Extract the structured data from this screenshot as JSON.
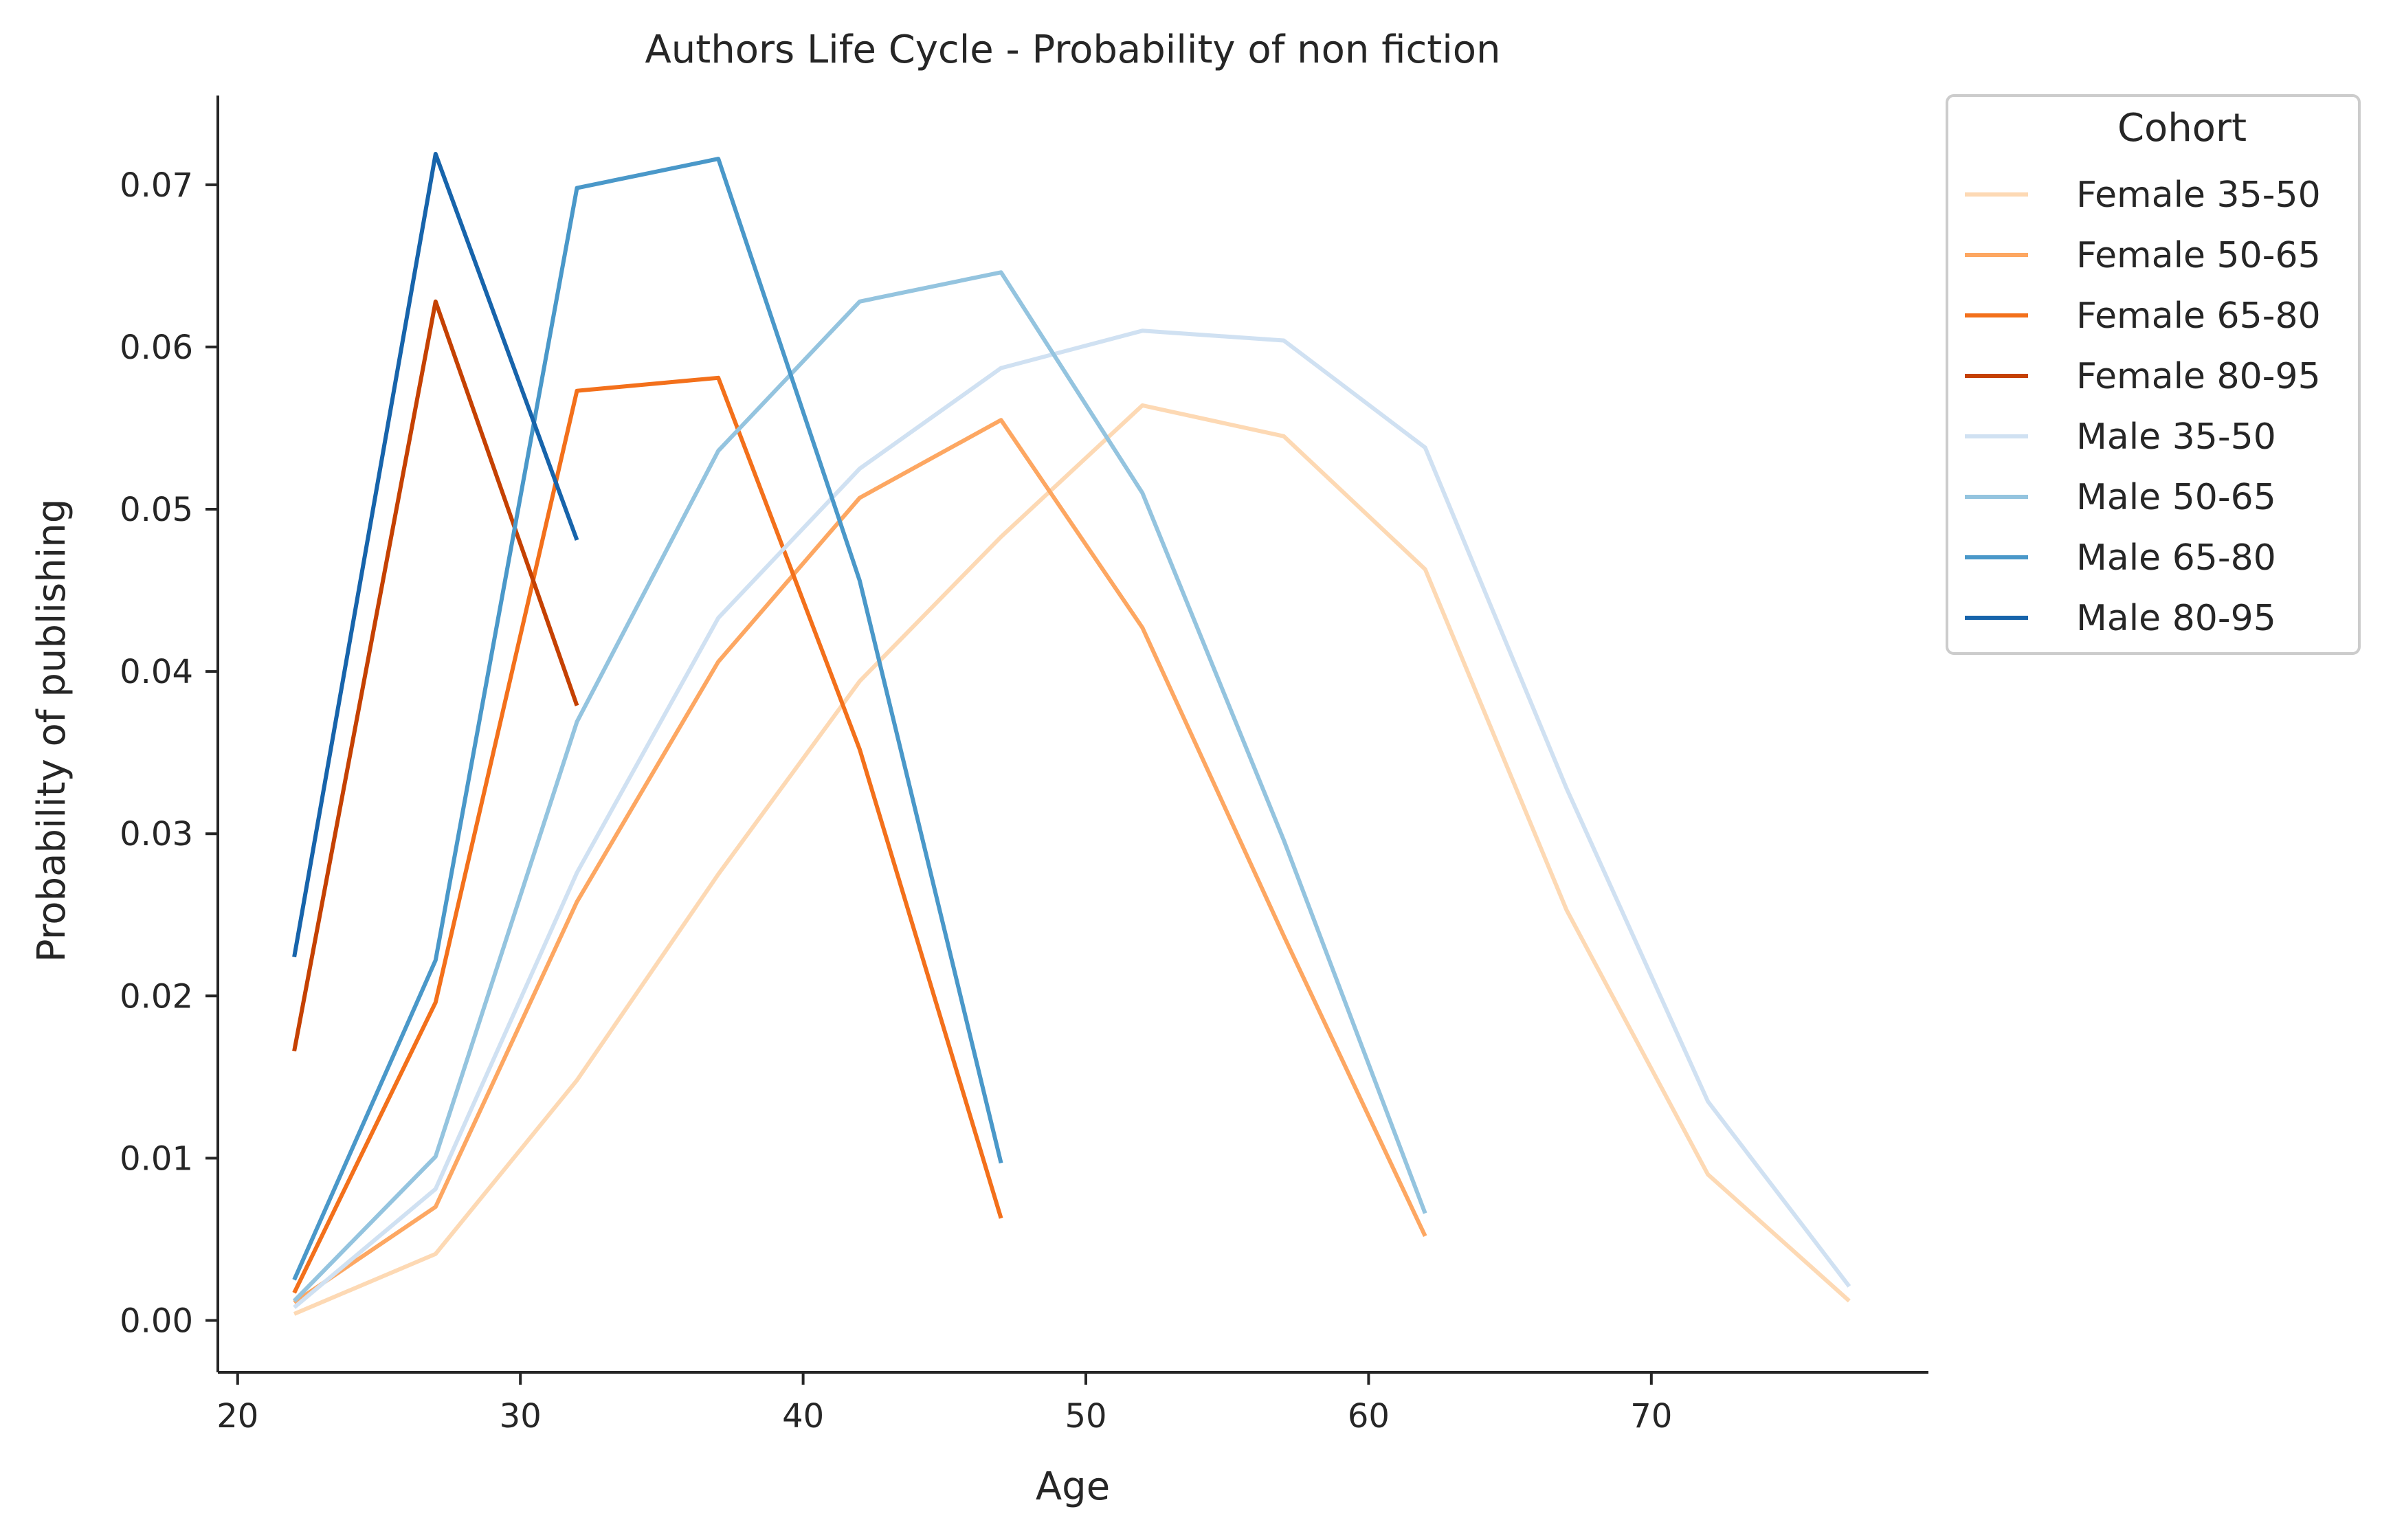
{
  "chart_data": {
    "type": "line",
    "title": "Authors Life Cycle - Probability of non fiction",
    "xlabel": "Age",
    "ylabel": "Probability of publishing",
    "xlim": [
      19.3,
      79.8
    ],
    "ylim": [
      -0.0032,
      0.0755
    ],
    "xticks": [
      20,
      30,
      40,
      50,
      60,
      70
    ],
    "xtick_labels": [
      "20",
      "30",
      "40",
      "50",
      "60",
      "70"
    ],
    "yticks": [
      0.0,
      0.01,
      0.02,
      0.03,
      0.04,
      0.05,
      0.06,
      0.07
    ],
    "ytick_labels": [
      "0.00",
      "0.01",
      "0.02",
      "0.03",
      "0.04",
      "0.05",
      "0.06",
      "0.07"
    ],
    "grid": false,
    "legend": {
      "title": "Cohort",
      "position": "outside-top-right"
    },
    "series": [
      {
        "name": "Female 35-50",
        "color": "#fdd9b4",
        "x": [
          22,
          27,
          32,
          37,
          42,
          47,
          52,
          57,
          62,
          67,
          72,
          77
        ],
        "values": [
          0.0004,
          0.0041,
          0.0148,
          0.0275,
          0.0394,
          0.0483,
          0.0564,
          0.0545,
          0.0463,
          0.0253,
          0.009,
          0.0012
        ]
      },
      {
        "name": "Female 50-65",
        "color": "#fda762",
        "x": [
          22,
          27,
          32,
          37,
          42,
          47,
          52,
          57,
          62
        ],
        "values": [
          0.0011,
          0.007,
          0.0258,
          0.0406,
          0.0507,
          0.0555,
          0.0427,
          0.0237,
          0.0052
        ]
      },
      {
        "name": "Female 65-80",
        "color": "#f3701b",
        "x": [
          22,
          27,
          32,
          37,
          42,
          47
        ],
        "values": [
          0.0017,
          0.0196,
          0.0573,
          0.0581,
          0.0352,
          0.0063
        ]
      },
      {
        "name": "Female 80-95",
        "color": "#c54102",
        "x": [
          22,
          27,
          32
        ],
        "values": [
          0.0166,
          0.0628,
          0.0379
        ]
      },
      {
        "name": "Male 35-50",
        "color": "#d0e1f2",
        "x": [
          22,
          27,
          32,
          37,
          42,
          47,
          52,
          57,
          62,
          67,
          72,
          77
        ],
        "values": [
          0.0008,
          0.0081,
          0.0276,
          0.0433,
          0.0525,
          0.0587,
          0.061,
          0.0604,
          0.0538,
          0.0328,
          0.0135,
          0.0021
        ]
      },
      {
        "name": "Male 50-65",
        "color": "#94c4df",
        "x": [
          22,
          27,
          32,
          37,
          42,
          47,
          52,
          57,
          62
        ],
        "values": [
          0.0012,
          0.0101,
          0.0369,
          0.0536,
          0.0628,
          0.0646,
          0.051,
          0.0296,
          0.0066
        ]
      },
      {
        "name": "Male 65-80",
        "color": "#4a98c9",
        "x": [
          22,
          27,
          32,
          37,
          42,
          47
        ],
        "values": [
          0.0025,
          0.0222,
          0.0698,
          0.0716,
          0.0456,
          0.0097
        ]
      },
      {
        "name": "Male 80-95",
        "color": "#1764ab",
        "x": [
          22,
          27,
          32
        ],
        "values": [
          0.0224,
          0.0719,
          0.0481
        ]
      }
    ]
  }
}
